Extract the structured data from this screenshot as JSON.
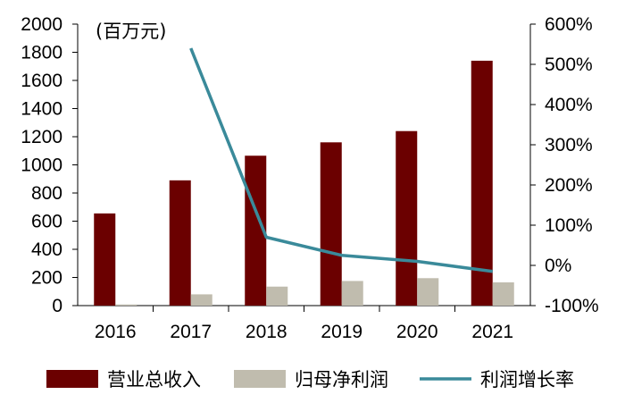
{
  "chart_data": {
    "type": "bar",
    "unit_label": "(百万元)",
    "categories": [
      "2016",
      "2017",
      "2018",
      "2019",
      "2020",
      "2021"
    ],
    "series": [
      {
        "name": "营业总收入",
        "kind": "bar",
        "axis": "left",
        "color": "#6b0000",
        "values": [
          655,
          890,
          1065,
          1160,
          1240,
          1740
        ]
      },
      {
        "name": "归母净利润",
        "kind": "bar",
        "axis": "left",
        "color": "#c0bcae",
        "values": [
          8,
          80,
          135,
          175,
          195,
          165
        ]
      },
      {
        "name": "利润增长率",
        "kind": "line",
        "axis": "right",
        "color": "#3a8a9a",
        "values": [
          null,
          540,
          70,
          25,
          10,
          -15
        ]
      }
    ],
    "y_left": {
      "min": 0,
      "max": 2000,
      "step": 200,
      "ticks": [
        "0",
        "200",
        "400",
        "600",
        "800",
        "1000",
        "1200",
        "1400",
        "1600",
        "1800",
        "2000"
      ]
    },
    "y_right": {
      "min": -100,
      "max": 600,
      "step": 100,
      "ticks": [
        "-100%",
        "0%",
        "100%",
        "200%",
        "300%",
        "400%",
        "500%",
        "600%"
      ]
    },
    "grid": false,
    "legend_position": "bottom"
  }
}
